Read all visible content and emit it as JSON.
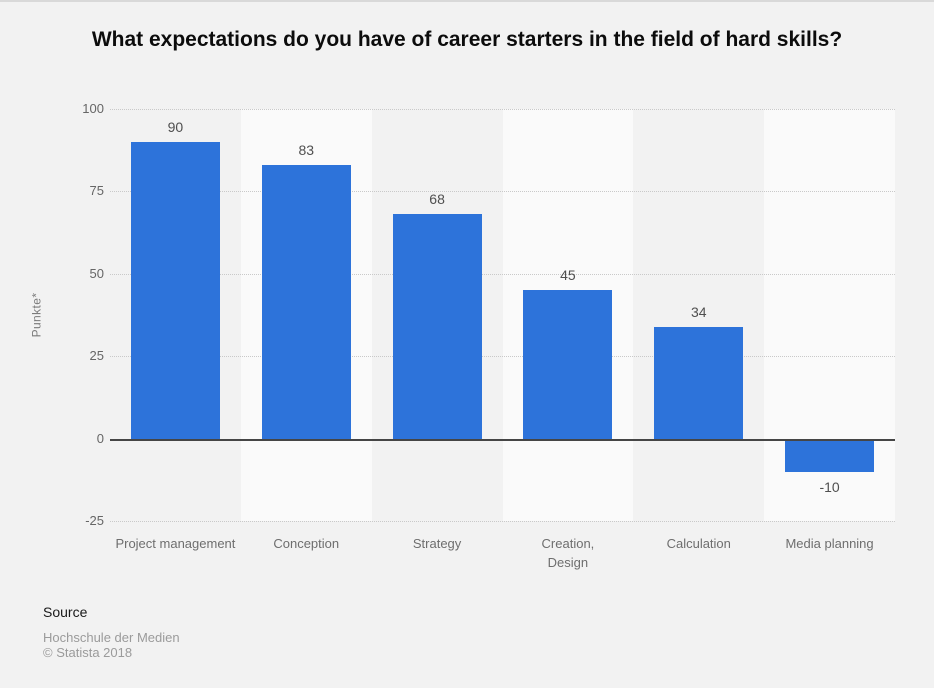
{
  "chart_data": {
    "type": "bar",
    "title": "What expectations do you have of career starters in the field of hard skills?",
    "categories": [
      "Project management",
      "Conception",
      "Strategy",
      "Creation,\nDesign",
      "Calculation",
      "Media planning"
    ],
    "values": [
      90,
      83,
      68,
      45,
      34,
      -10
    ],
    "xlabel": "",
    "ylabel": "Punkte*",
    "ylim": [
      -25,
      100
    ],
    "yticks": [
      100,
      75,
      50,
      25,
      0,
      -25
    ],
    "grid": "horizontal-dotted",
    "legend": "none",
    "bar_color": "#2d73da",
    "band_colors": [
      "#f2f2f2",
      "#fafafa"
    ],
    "zero_line_color": "#454545"
  },
  "footer": {
    "source_label": "Source",
    "source_name": "Hochschule der Medien",
    "copyright": "© Statista 2018"
  }
}
